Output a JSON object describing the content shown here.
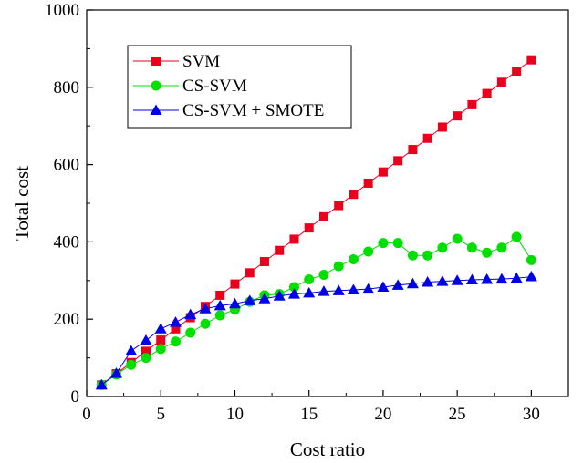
{
  "chart_data": {
    "type": "line",
    "title": "",
    "xlabel": "Cost ratio",
    "ylabel": "Total cost",
    "xlim": [
      0,
      32.5
    ],
    "ylim": [
      0,
      1000
    ],
    "xticks": [
      0,
      5,
      10,
      15,
      20,
      25,
      30
    ],
    "yticks": [
      0,
      200,
      400,
      600,
      800,
      1000
    ],
    "legend_position": "top-left",
    "grid": false,
    "series": [
      {
        "name": "SVM",
        "color": "#e8001c",
        "marker": "square",
        "x": [
          1,
          2,
          3,
          4,
          5,
          6,
          7,
          8,
          9,
          10,
          11,
          12,
          13,
          14,
          15,
          16,
          17,
          18,
          19,
          20,
          21,
          22,
          23,
          24,
          25,
          26,
          27,
          28,
          29,
          30
        ],
        "values": [
          30,
          59,
          88,
          117,
          146,
          175,
          204,
          233,
          262,
          291,
          320,
          349,
          378,
          407,
          436,
          465,
          494,
          523,
          552,
          581,
          610,
          639,
          668,
          697,
          726,
          755,
          784,
          813,
          842,
          871
        ]
      },
      {
        "name": "CS-SVM",
        "color": "#00e000",
        "marker": "circle",
        "x": [
          1,
          2,
          3,
          4,
          5,
          6,
          7,
          8,
          9,
          10,
          11,
          12,
          13,
          14,
          15,
          16,
          17,
          18,
          19,
          20,
          21,
          22,
          23,
          24,
          25,
          26,
          27,
          28,
          29,
          30
        ],
        "values": [
          30,
          57,
          82,
          100,
          123,
          142,
          165,
          188,
          210,
          225,
          245,
          262,
          265,
          283,
          303,
          315,
          337,
          355,
          375,
          397,
          397,
          365,
          365,
          385,
          408,
          385,
          372,
          385,
          413,
          353
        ]
      },
      {
        "name": "CS-SVM + SMOTE",
        "color": "#0000e8",
        "marker": "triangle",
        "x": [
          1,
          2,
          3,
          4,
          5,
          6,
          7,
          8,
          9,
          10,
          11,
          12,
          13,
          14,
          15,
          16,
          17,
          18,
          19,
          20,
          21,
          22,
          23,
          24,
          25,
          26,
          27,
          28,
          29,
          30
        ],
        "values": [
          30,
          60,
          118,
          145,
          175,
          192,
          212,
          227,
          235,
          240,
          248,
          253,
          260,
          265,
          268,
          272,
          274,
          276,
          278,
          283,
          288,
          292,
          296,
          298,
          300,
          302,
          303,
          304,
          306,
          310
        ]
      }
    ]
  }
}
